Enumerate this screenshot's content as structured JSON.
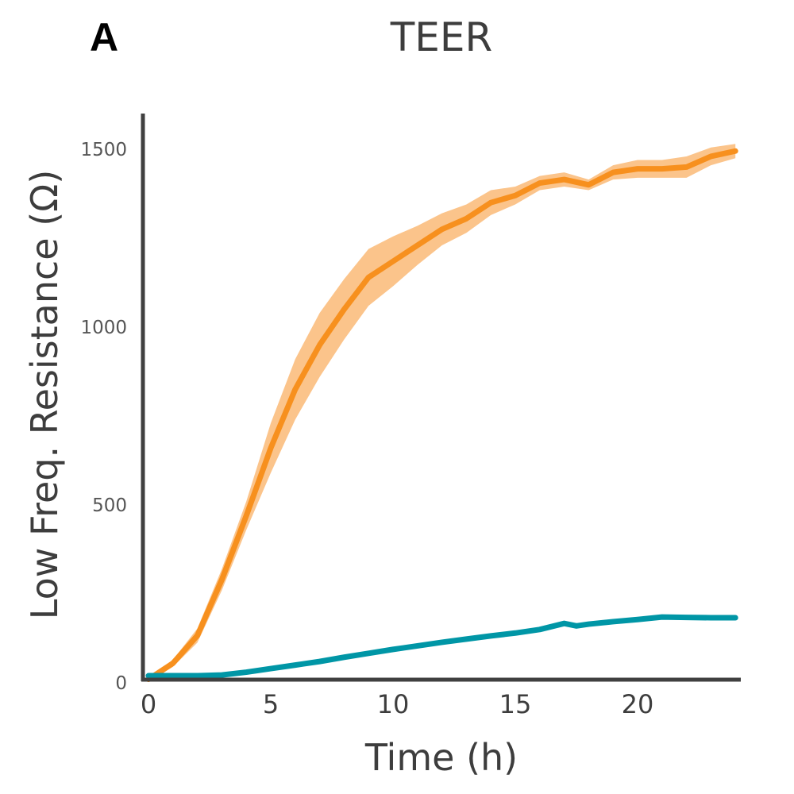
{
  "panel_label": "A",
  "chart_data": {
    "type": "line",
    "title": "TEER",
    "xlabel": "Time (h)",
    "ylabel": "Low Freq. Resistance (Ω)",
    "xlim": [
      -0.2,
      24.3
    ],
    "ylim": [
      0,
      1600
    ],
    "xticks": [
      0,
      5,
      10,
      15,
      20
    ],
    "yticks": [
      0,
      500,
      1000,
      1500
    ],
    "grid": false,
    "colors": {
      "orange": "#F7901E",
      "orange_band": "#FBC48B",
      "teal": "#0096A6",
      "axis": "#404040"
    },
    "series": [
      {
        "color": "orange",
        "x": [
          0,
          1,
          2,
          3,
          4,
          5,
          6,
          7,
          8,
          9,
          10,
          11,
          12,
          13,
          14,
          15,
          16,
          17,
          18,
          19,
          20,
          21,
          22,
          23,
          24
        ],
        "y": [
          10,
          55,
          133,
          290,
          470,
          660,
          825,
          950,
          1050,
          1140,
          1185,
          1230,
          1275,
          1305,
          1350,
          1370,
          1405,
          1415,
          1400,
          1435,
          1445,
          1445,
          1450,
          1480,
          1495
        ],
        "band": [
          5,
          10,
          20,
          30,
          40,
          70,
          85,
          90,
          85,
          80,
          70,
          55,
          45,
          40,
          35,
          25,
          20,
          20,
          15,
          20,
          25,
          25,
          30,
          25,
          20
        ]
      },
      {
        "color": "teal",
        "x": [
          0,
          1,
          2,
          3,
          4,
          5,
          6,
          7,
          8,
          9,
          10,
          11,
          12,
          13,
          14,
          15,
          16,
          17,
          17.5,
          18,
          19,
          20,
          21,
          22,
          23,
          24
        ],
        "y": [
          20,
          20,
          20,
          22,
          30,
          40,
          50,
          60,
          72,
          83,
          94,
          104,
          114,
          123,
          132,
          140,
          150,
          167,
          160,
          165,
          172,
          178,
          185,
          184,
          183,
          183
        ],
        "band": [
          3,
          3,
          3,
          3,
          3,
          3,
          3,
          3,
          3,
          3,
          3,
          3,
          3,
          3,
          3,
          3,
          3,
          4,
          6,
          5,
          4,
          4,
          3,
          3,
          3,
          3
        ]
      }
    ]
  }
}
